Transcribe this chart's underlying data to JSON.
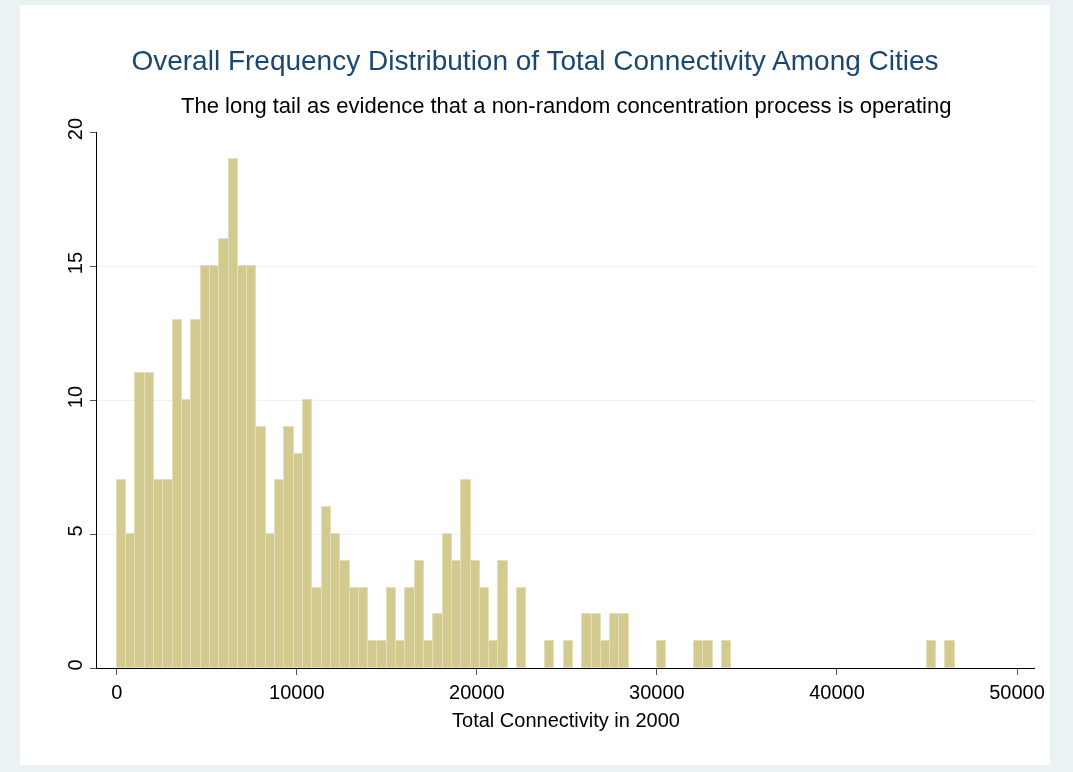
{
  "chart_data": {
    "type": "histogram",
    "title": "Overall Frequency Distribution of Total Connectivity Among Cities",
    "subtitle": "The long tail as evidence that a non-random concentration process is operating",
    "xlabel": "Total Connectivity in 2000",
    "bins": [
      0,
      517,
      1034,
      1551,
      2068,
      2585,
      3102,
      3619,
      4136,
      4653,
      5170,
      5687,
      6204,
      6721,
      7238,
      7755,
      8272,
      8789,
      9306,
      9823,
      10340,
      10857,
      11374,
      11891,
      12408,
      12925,
      13442,
      13959,
      14476,
      14993,
      15510,
      16027,
      16544,
      17061,
      17578,
      18095,
      18612,
      19129,
      19646,
      20163,
      20680,
      21197,
      21714,
      22231,
      22748,
      23265,
      23782,
      24299,
      24816,
      25333,
      25850,
      26367,
      26884,
      27401,
      27918,
      28435,
      28952,
      29469,
      29986,
      30503,
      31020,
      31537,
      32054,
      32571,
      33088,
      33605,
      34122,
      34639,
      35156,
      35673,
      36190,
      36707,
      37224,
      37741,
      38258,
      38775,
      39292,
      39809,
      40326,
      40843,
      41360,
      41877,
      42394,
      42911,
      43428,
      43945,
      44462,
      44979,
      45496,
      46013,
      46530
    ],
    "values": [
      7,
      5,
      11,
      11,
      7,
      7,
      13,
      10,
      13,
      15,
      15,
      16,
      19,
      15,
      15,
      9,
      5,
      7,
      9,
      8,
      10,
      3,
      6,
      5,
      4,
      3,
      3,
      1,
      1,
      3,
      1,
      3,
      4,
      1,
      2,
      5,
      4,
      7,
      4,
      3,
      1,
      4,
      0,
      3,
      0,
      0,
      1,
      0,
      1,
      0,
      2,
      2,
      1,
      2,
      2,
      0,
      0,
      0,
      1,
      0,
      0,
      0,
      1,
      1,
      0,
      1,
      0,
      0,
      0,
      0,
      0,
      0,
      0,
      0,
      0,
      0,
      0,
      0,
      0,
      0,
      0,
      0,
      0,
      0,
      0,
      0,
      0,
      1,
      0,
      1
    ],
    "color": "#d3ca8f",
    "xlim": [
      -1100,
      51000
    ],
    "xticks": [
      0,
      10000,
      20000,
      30000,
      40000,
      50000
    ],
    "ylim": [
      0,
      20
    ],
    "yticks": [
      0,
      5,
      10,
      15,
      20
    ],
    "grid": "y"
  }
}
